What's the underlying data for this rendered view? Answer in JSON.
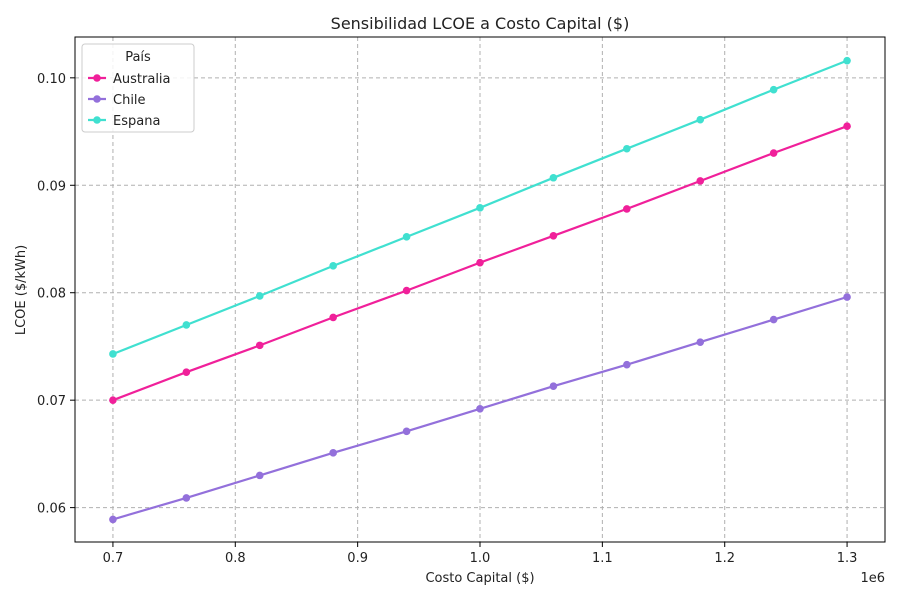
{
  "chart_data": {
    "type": "line",
    "title": "Sensibilidad LCOE a Costo Capital ($)",
    "xlabel": "Costo Capital ($)",
    "ylabel": "LCOE ($/kWh)",
    "x_offset_text": "1e6",
    "x": [
      700000,
      760000,
      820000,
      880000,
      940000,
      1000000,
      1060000,
      1120000,
      1180000,
      1240000,
      1300000
    ],
    "xlim": [
      669000,
      1331000
    ],
    "ylim": [
      0.0568,
      0.1038
    ],
    "xticks": [
      700000,
      800000,
      900000,
      1000000,
      1100000,
      1200000,
      1300000
    ],
    "xtick_labels": [
      "0.7",
      "0.8",
      "0.9",
      "1.0",
      "1.1",
      "1.2",
      "1.3"
    ],
    "yticks": [
      0.06,
      0.07,
      0.08,
      0.09,
      0.1
    ],
    "ytick_labels": [
      "0.06",
      "0.07",
      "0.08",
      "0.09",
      "0.10"
    ],
    "grid": true,
    "legend": {
      "title": "País",
      "position": "top-left"
    },
    "series": [
      {
        "name": "Australia",
        "color": "#f0209a",
        "values": [
          0.07,
          0.0726,
          0.0751,
          0.0777,
          0.0802,
          0.0828,
          0.0853,
          0.0878,
          0.0904,
          0.093,
          0.0955
        ]
      },
      {
        "name": "Chile",
        "color": "#9370db",
        "values": [
          0.0589,
          0.0609,
          0.063,
          0.0651,
          0.0671,
          0.0692,
          0.0713,
          0.0733,
          0.0754,
          0.0775,
          0.0796
        ]
      },
      {
        "name": "Espana",
        "color": "#40e0d0",
        "values": [
          0.0743,
          0.077,
          0.0797,
          0.0825,
          0.0852,
          0.0879,
          0.0907,
          0.0934,
          0.0961,
          0.0989,
          0.1016
        ]
      }
    ]
  }
}
